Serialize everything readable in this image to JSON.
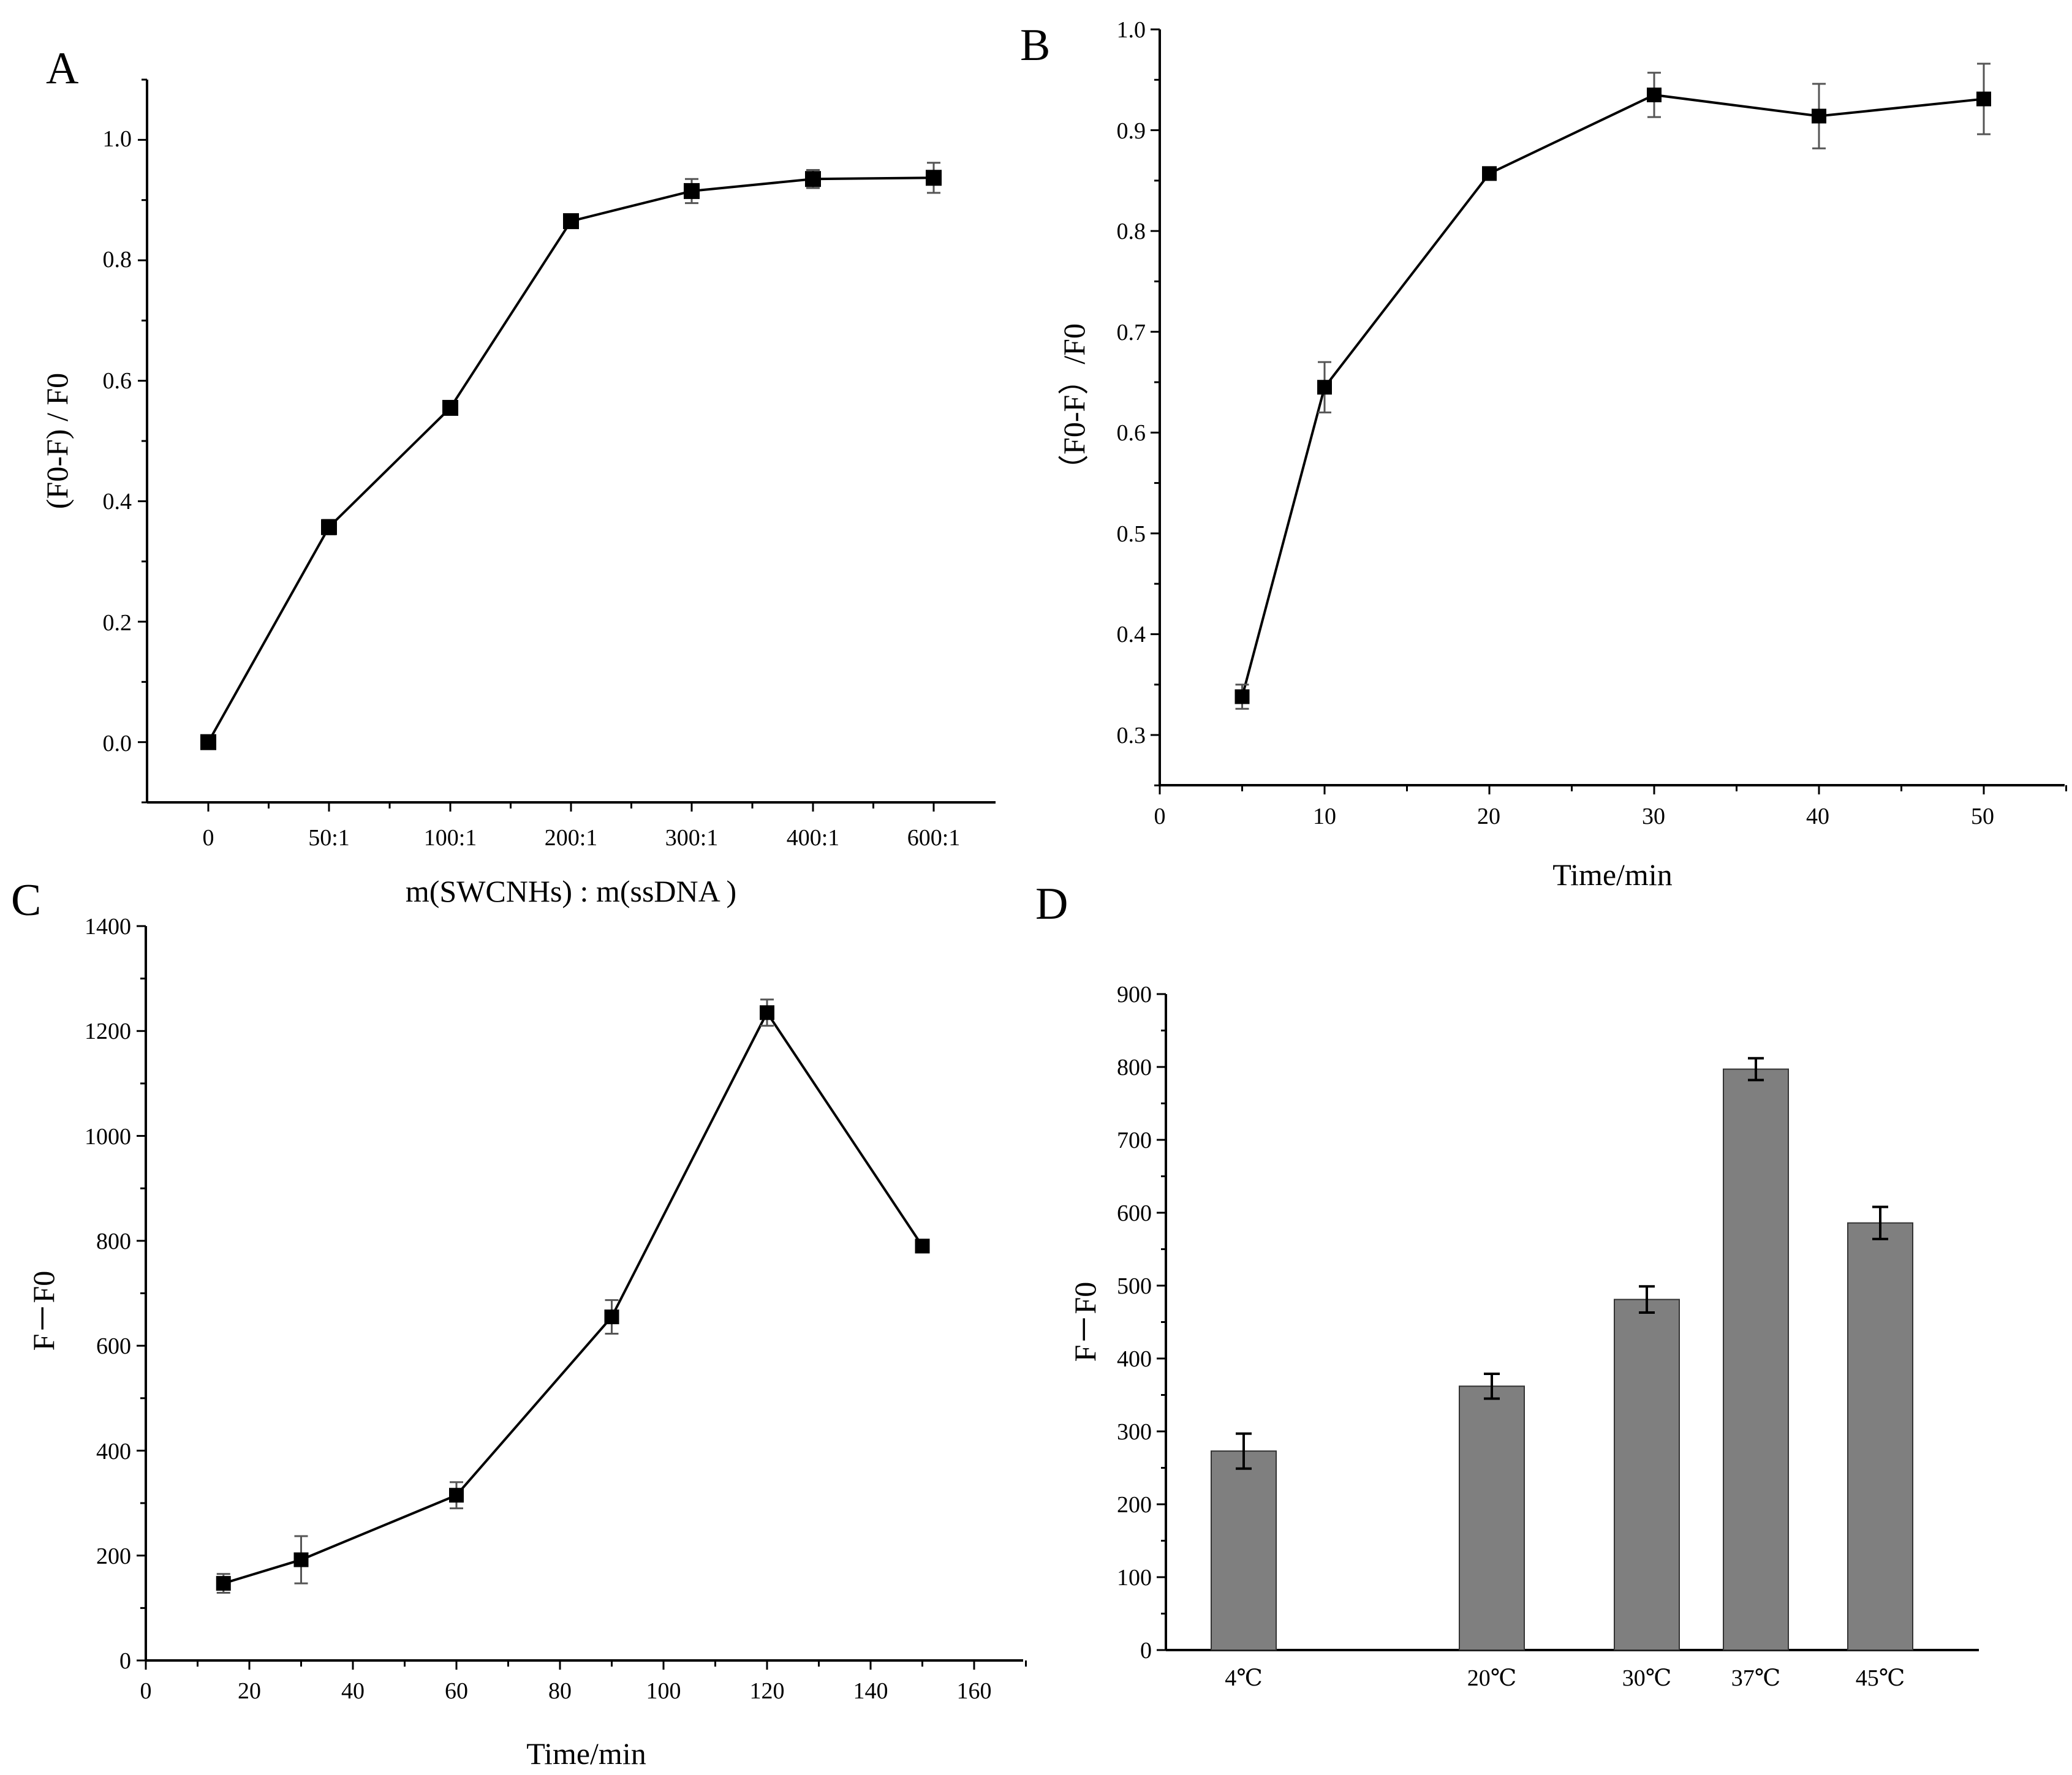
{
  "chart_data": [
    {
      "panel": "A",
      "type": "line",
      "categories": [
        "0",
        "50:1",
        "100:1",
        "200:1",
        "300:1",
        "400:1",
        "600:1"
      ],
      "values": [
        0.0,
        0.357,
        0.555,
        0.865,
        0.915,
        0.935,
        0.937
      ],
      "errors": [
        0.01,
        0.012,
        0.01,
        0.01,
        0.02,
        0.015,
        0.025
      ],
      "xlabel": "m(SWCNHs) : m(ssDNA )",
      "ylabel": "(F0-F) / F0",
      "ylim": [
        -0.1,
        1.1
      ],
      "yticks": [
        0.0,
        0.2,
        0.4,
        0.6,
        0.8,
        1.0
      ],
      "ytick_labels": [
        "0.0",
        "0.2",
        "0.4",
        "0.6",
        "0.8",
        "1.0"
      ]
    },
    {
      "panel": "B",
      "type": "line",
      "x": [
        5,
        10,
        20,
        30,
        40,
        50
      ],
      "values": [
        0.338,
        0.645,
        0.857,
        0.935,
        0.914,
        0.931
      ],
      "errors": [
        0.012,
        0.025,
        0.005,
        0.022,
        0.032,
        0.035
      ],
      "xlabel": "Time/min",
      "ylabel": "（F0-F）/F0",
      "xlim": [
        0,
        55
      ],
      "xticks": [
        0,
        10,
        20,
        30,
        40,
        50
      ],
      "xtick_labels": [
        "0",
        "10",
        "20",
        "30",
        "40",
        "50"
      ],
      "ylim": [
        0.25,
        1.0
      ],
      "yticks": [
        0.3,
        0.4,
        0.5,
        0.6,
        0.7,
        0.8,
        0.9,
        1.0
      ],
      "ytick_labels": [
        "0.3",
        "0.4",
        "0.5",
        "0.6",
        "0.7",
        "0.8",
        "0.9",
        "1.0"
      ]
    },
    {
      "panel": "C",
      "type": "line",
      "x": [
        15,
        30,
        60,
        90,
        120,
        150
      ],
      "values": [
        147,
        192,
        315,
        655,
        1235,
        790
      ],
      "errors": [
        18,
        45,
        25,
        32,
        25,
        12
      ],
      "xlabel": "Time/min",
      "ylabel": "F－F0",
      "xlim": [
        0,
        170
      ],
      "xticks": [
        0,
        20,
        40,
        60,
        80,
        100,
        120,
        140,
        160
      ],
      "xtick_labels": [
        "0",
        "20",
        "40",
        "60",
        "80",
        "100",
        "120",
        "140",
        "160"
      ],
      "ylim": [
        0,
        1400
      ],
      "yticks": [
        0,
        200,
        400,
        600,
        800,
        1000,
        1200,
        1400
      ],
      "ytick_labels": [
        "0",
        "200",
        "400",
        "600",
        "800",
        "1000",
        "1200",
        "1400"
      ]
    },
    {
      "panel": "D",
      "type": "bar",
      "categories": [
        "4℃",
        "20℃",
        "30℃",
        "37℃",
        "45℃"
      ],
      "x": [
        4,
        20,
        30,
        37,
        45
      ],
      "values": [
        273,
        362,
        481,
        797,
        586
      ],
      "errors": [
        24,
        17,
        18,
        15,
        22
      ],
      "xlabel": "",
      "ylabel": "F－F0",
      "xlim": [
        -1,
        51.5
      ],
      "ylim": [
        0,
        900
      ],
      "yticks": [
        0,
        100,
        200,
        300,
        400,
        500,
        600,
        700,
        800,
        900
      ],
      "ytick_labels": [
        "0",
        "100",
        "200",
        "300",
        "400",
        "500",
        "600",
        "700",
        "800",
        "900"
      ]
    }
  ]
}
